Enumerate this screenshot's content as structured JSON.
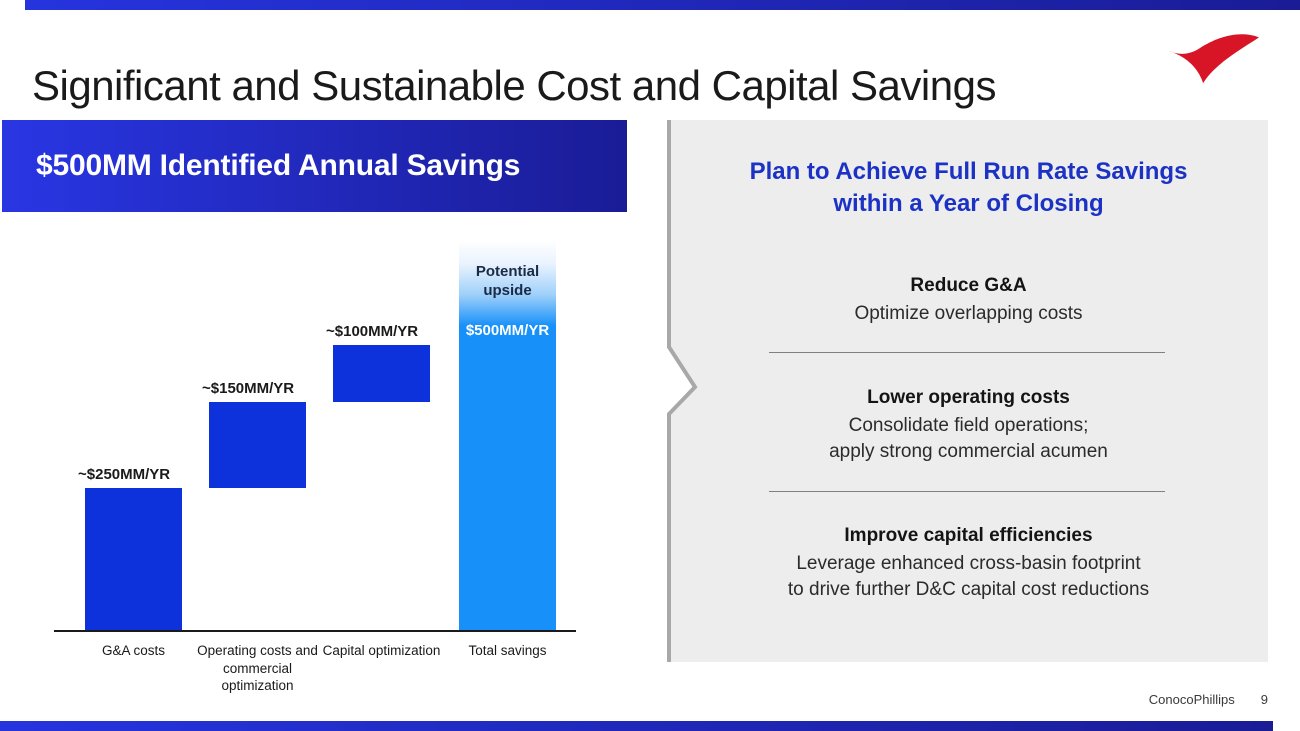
{
  "slide": {
    "title": "Significant and Sustainable Cost and Capital Savings",
    "footer": {
      "brand": "ConocoPhillips",
      "page": "9"
    },
    "logo": "conocophillips-swoosh",
    "colors": {
      "bar_blue": "#0D32DC",
      "total_blue": "#1890FA",
      "heading_blue": "#1B32C4",
      "banner_gradient_left": "#2936E3",
      "banner_gradient_right": "#1A1C96",
      "panel_gray": "#EDEDED",
      "logo_red": "#D81526"
    }
  },
  "left_panel": {
    "header": "$500MM Identified Annual Savings"
  },
  "chart_data": {
    "type": "bar",
    "subtype": "waterfall",
    "title": "$500MM Identified Annual Savings",
    "units": "$MM per year",
    "ylim": [
      0,
      500
    ],
    "grid": false,
    "categories": [
      "G&A costs",
      "Operating costs and commercial optimization",
      "Capital optimization",
      "Total savings"
    ],
    "values": [
      250,
      150,
      100,
      500
    ],
    "bar_labels": [
      "~$250MM/YR",
      "~$150MM/YR",
      "~$100MM/YR",
      "$500MM/YR"
    ],
    "annotations": [
      "Potential upside"
    ],
    "bars": [
      {
        "category": "G&A costs",
        "label": "~$250MM/YR",
        "start": 0,
        "end": 250,
        "role": "increment"
      },
      {
        "category": "Operating costs and commercial optimization",
        "label": "~$150MM/YR",
        "start": 250,
        "end": 400,
        "role": "increment"
      },
      {
        "category": "Capital optimization",
        "label": "~$100MM/YR",
        "start": 400,
        "end": 500,
        "role": "increment"
      },
      {
        "category": "Total savings",
        "label": "$500MM/YR",
        "start": 0,
        "end": 500,
        "role": "total",
        "annotation": "Potential upside"
      }
    ]
  },
  "right_panel": {
    "heading_lines": [
      "Plan to Achieve Full Run Rate Savings",
      "within a Year of Closing"
    ],
    "sections": [
      {
        "title": "Reduce G&A",
        "body_lines": [
          "Optimize overlapping costs"
        ]
      },
      {
        "title": "Lower operating costs",
        "body_lines": [
          "Consolidate field operations;",
          "apply strong commercial acumen"
        ]
      },
      {
        "title": "Improve capital efficiencies",
        "body_lines": [
          "Leverage enhanced cross-basin footprint",
          "to drive further D&C capital cost reductions"
        ]
      }
    ]
  }
}
